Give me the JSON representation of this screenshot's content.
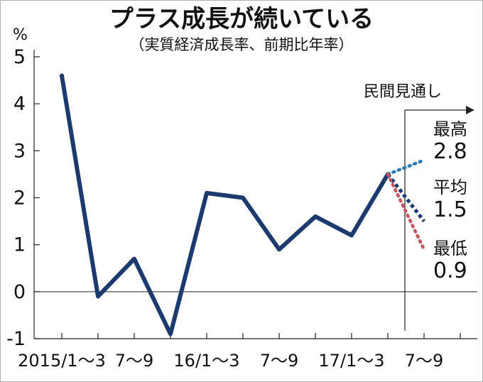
{
  "chart_data": {
    "type": "line",
    "title": "プラス成長が続いている",
    "subtitle": "（実質経済成長率、前期比年率）",
    "ylabel": "%",
    "ylim": [
      -1,
      5
    ],
    "yticks": [
      "-1",
      "0",
      "1",
      "2",
      "3",
      "4",
      "5"
    ],
    "x_tick_labels": [
      "2015/1～3",
      "7～9",
      "16/1～3",
      "7～9",
      "17/1～3",
      "7～9"
    ],
    "series": [
      {
        "values": [
          4.6,
          -0.1,
          0.7,
          -0.9,
          2.1,
          2.0,
          0.9,
          1.6,
          1.2,
          2.5
        ],
        "color": "#1c3a6e"
      }
    ],
    "forecast": {
      "header": "民間見通し",
      "start_value": 2.5,
      "lines": [
        {
          "label": "最高",
          "value": "2.8",
          "y": 2.8,
          "color": "#2a78b4"
        },
        {
          "label": "平均",
          "value": "1.5",
          "y": 1.5,
          "color": "#1c3a6e"
        },
        {
          "label": "最低",
          "value": "0.9",
          "y": 0.9,
          "color": "#c4555c"
        }
      ]
    }
  }
}
